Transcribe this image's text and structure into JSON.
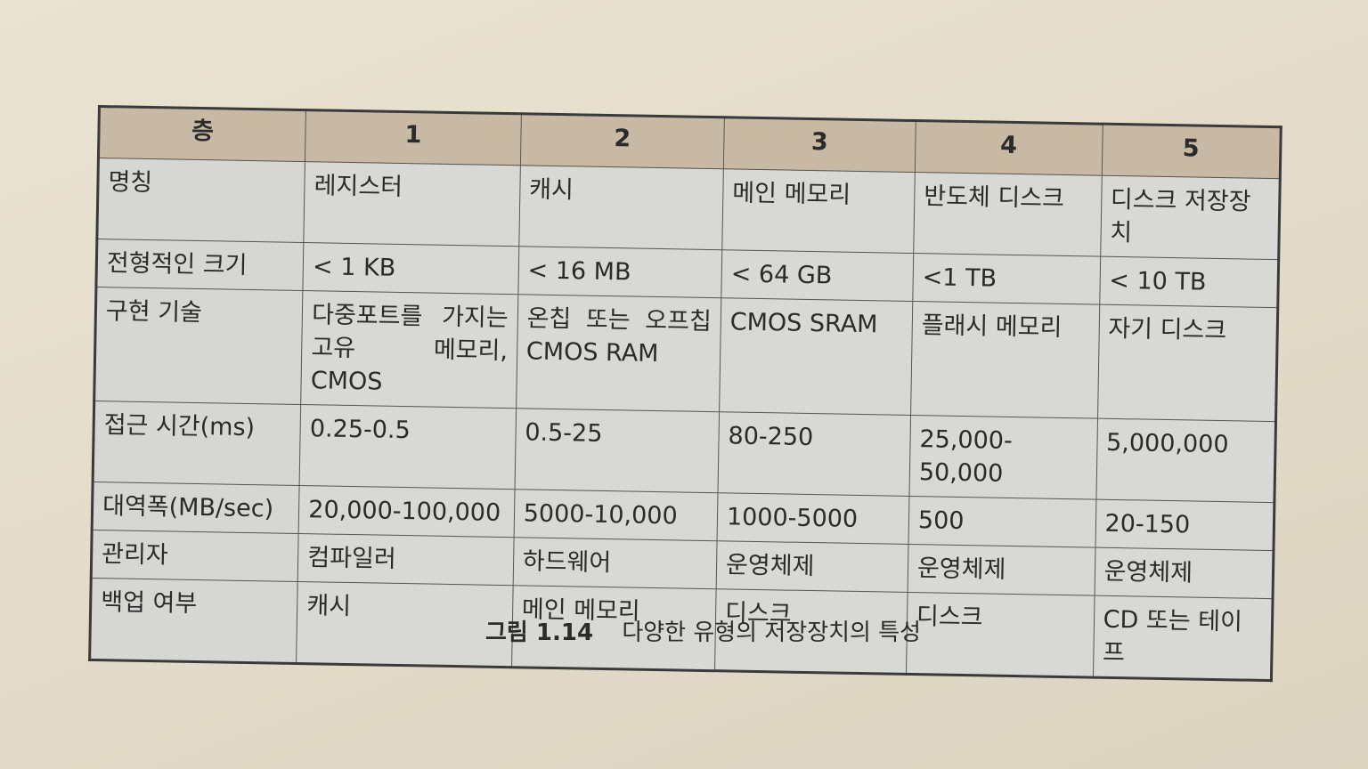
{
  "table": {
    "header": [
      "층",
      "1",
      "2",
      "3",
      "4",
      "5"
    ],
    "rows": [
      {
        "label": "명칭",
        "cells": [
          "레지스터",
          "캐시",
          "메인 메모리",
          "반도체 디스크",
          "디스크 저장장치"
        ]
      },
      {
        "label": "전형적인 크기",
        "cells": [
          "< 1 KB",
          "< 16 MB",
          "< 64 GB",
          "<1 TB",
          "< 10 TB"
        ]
      },
      {
        "label": "구현 기술",
        "cells": [
          "다중포트를 가지는 고유 메모리, CMOS",
          "온칩 또는 오프칩 CMOS RAM",
          "CMOS SRAM",
          "플래시 메모리",
          "자기 디스크"
        ]
      },
      {
        "label": "접근 시간(ms)",
        "cells": [
          "0.25-0.5",
          "0.5-25",
          "80-250",
          "25,000-50,000",
          "5,000,000"
        ]
      },
      {
        "label": "대역폭(MB/sec)",
        "cells": [
          "20,000-100,000",
          "5000-10,000",
          "1000-5000",
          "500",
          "20-150"
        ]
      },
      {
        "label": "관리자",
        "cells": [
          "컴파일러",
          "하드웨어",
          "운영체제",
          "운영체제",
          "운영체제"
        ]
      },
      {
        "label": "백업 여부",
        "cells": [
          "캐시",
          "메인 메모리",
          "디스크",
          "디스크",
          "CD 또는 테이프"
        ]
      }
    ]
  },
  "caption": {
    "number": "그림 1.14",
    "text": "다양한 유형의 저장장치의 특성"
  }
}
